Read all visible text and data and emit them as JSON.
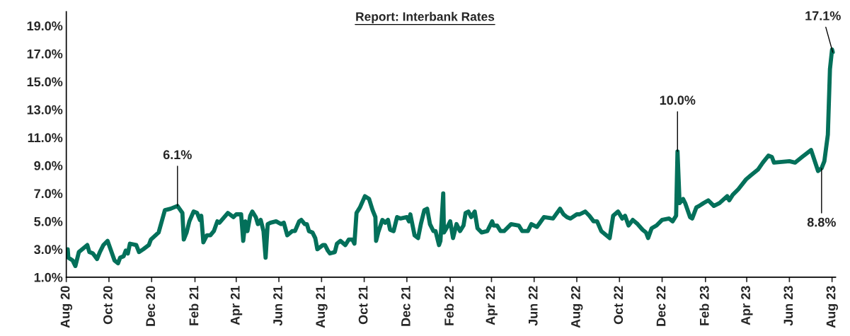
{
  "chart_data": {
    "type": "line",
    "title": "Report: Interbank Rates",
    "xlim": [
      "2020-08-01",
      "2023-08-06"
    ],
    "xticks": [
      {
        "value": "2020-08-01",
        "label": "Aug 20"
      },
      {
        "value": "2020-10-01",
        "label": "Oct 20"
      },
      {
        "value": "2020-12-01",
        "label": "Dec 20"
      },
      {
        "value": "2021-02-01",
        "label": "Feb 21"
      },
      {
        "value": "2021-04-01",
        "label": "Apr 21"
      },
      {
        "value": "2021-06-01",
        "label": "Jun 21"
      },
      {
        "value": "2021-08-01",
        "label": "Aug 21"
      },
      {
        "value": "2021-10-01",
        "label": "Oct 21"
      },
      {
        "value": "2021-12-01",
        "label": "Dec 21"
      },
      {
        "value": "2022-02-01",
        "label": "Feb 22"
      },
      {
        "value": "2022-04-01",
        "label": "Apr 22"
      },
      {
        "value": "2022-06-01",
        "label": "Jun 22"
      },
      {
        "value": "2022-08-01",
        "label": "Aug 22"
      },
      {
        "value": "2022-10-01",
        "label": "Oct 22"
      },
      {
        "value": "2022-12-01",
        "label": "Dec 22"
      },
      {
        "value": "2023-02-01",
        "label": "Feb 23"
      },
      {
        "value": "2023-04-01",
        "label": "Apr 23"
      },
      {
        "value": "2023-06-01",
        "label": "Jun 23"
      },
      {
        "value": "2023-08-01",
        "label": "Aug 23"
      }
    ],
    "ylim": [
      1,
      20
    ],
    "yticks": [
      {
        "value": 1,
        "label": "1.0%"
      },
      {
        "value": 3,
        "label": "3.0%"
      },
      {
        "value": 5,
        "label": "5.0%"
      },
      {
        "value": 7,
        "label": "7.0%"
      },
      {
        "value": 9,
        "label": "9.0%"
      },
      {
        "value": 11,
        "label": "11.0%"
      },
      {
        "value": 13,
        "label": "13.0%"
      },
      {
        "value": 15,
        "label": "15.0%"
      },
      {
        "value": 17,
        "label": "17.0%"
      },
      {
        "value": 19,
        "label": "19.0%"
      }
    ],
    "grid": false,
    "legend": false,
    "marker": "none",
    "line_style": "solid",
    "x": [
      "2020-08-03",
      "2020-08-04",
      "2020-08-10",
      "2020-08-14",
      "2020-08-19",
      "2020-08-31",
      "2020-09-03",
      "2020-09-08",
      "2020-09-14",
      "2020-09-18",
      "2020-09-23",
      "2020-09-29",
      "2020-10-09",
      "2020-10-14",
      "2020-10-17",
      "2020-10-22",
      "2020-10-25",
      "2020-10-28",
      "2020-10-31",
      "2020-11-09",
      "2020-11-13",
      "2020-11-19",
      "2020-11-27",
      "2020-11-30",
      "2020-12-11",
      "2020-12-20",
      "2020-12-28",
      "2021-01-07",
      "2021-01-14",
      "2021-01-16",
      "2021-01-20",
      "2021-01-24",
      "2021-01-30",
      "2021-02-04",
      "2021-02-08",
      "2021-02-10",
      "2021-02-13",
      "2021-02-18",
      "2021-02-23",
      "2021-02-28",
      "2021-03-05",
      "2021-03-08",
      "2021-03-20",
      "2021-03-28",
      "2021-04-01",
      "2021-04-08",
      "2021-04-11",
      "2021-04-14",
      "2021-04-17",
      "2021-04-21",
      "2021-04-24",
      "2021-04-29",
      "2021-05-02",
      "2021-05-06",
      "2021-05-10",
      "2021-05-13",
      "2021-05-16",
      "2021-05-20",
      "2021-05-28",
      "2021-06-04",
      "2021-06-08",
      "2021-06-13",
      "2021-06-20",
      "2021-06-24",
      "2021-06-30",
      "2021-07-03",
      "2021-07-08",
      "2021-07-11",
      "2021-07-14",
      "2021-07-19",
      "2021-07-23",
      "2021-07-26",
      "2021-08-03",
      "2021-08-06",
      "2021-08-10",
      "2021-08-13",
      "2021-08-20",
      "2021-08-23",
      "2021-08-28",
      "2021-09-04",
      "2021-09-09",
      "2021-09-14",
      "2021-09-17",
      "2021-09-20",
      "2021-09-25",
      "2021-10-02",
      "2021-10-08",
      "2021-10-13",
      "2021-10-17",
      "2021-10-18",
      "2021-10-21",
      "2021-10-27",
      "2021-10-31",
      "2021-11-04",
      "2021-11-07",
      "2021-11-12",
      "2021-11-17",
      "2021-11-22",
      "2021-12-01",
      "2021-12-04",
      "2021-12-06",
      "2021-12-12",
      "2021-12-17",
      "2021-12-21",
      "2021-12-26",
      "2021-12-30",
      "2022-01-03",
      "2022-01-08",
      "2022-01-11",
      "2022-01-16",
      "2022-01-18",
      "2022-01-22",
      "2022-01-23",
      "2022-01-29",
      "2022-02-01",
      "2022-02-05",
      "2022-02-10",
      "2022-02-15",
      "2022-02-20",
      "2022-02-23",
      "2022-02-27",
      "2022-03-03",
      "2022-03-08",
      "2022-03-12",
      "2022-03-18",
      "2022-03-26",
      "2022-04-02",
      "2022-04-04",
      "2022-04-09",
      "2022-04-14",
      "2022-04-19",
      "2022-04-29",
      "2022-05-10",
      "2022-05-15",
      "2022-05-23",
      "2022-05-28",
      "2022-06-05",
      "2022-06-15",
      "2022-06-28",
      "2022-07-08",
      "2022-07-13",
      "2022-07-18",
      "2022-07-23",
      "2022-08-01",
      "2022-08-05",
      "2022-08-13",
      "2022-08-19",
      "2022-08-25",
      "2022-08-30",
      "2022-09-05",
      "2022-09-17",
      "2022-09-22",
      "2022-09-29",
      "2022-10-05",
      "2022-10-09",
      "2022-10-14",
      "2022-10-20",
      "2022-10-27",
      "2022-11-03",
      "2022-11-08",
      "2022-11-11",
      "2022-11-16",
      "2022-11-23",
      "2022-12-01",
      "2022-12-11",
      "2022-12-16",
      "2022-12-21",
      "2022-12-23",
      "2022-12-26",
      "2022-12-31",
      "2023-01-03",
      "2023-01-10",
      "2023-01-13",
      "2023-01-19",
      "2023-01-23",
      "2023-01-29",
      "2023-02-05",
      "2023-02-13",
      "2023-02-21",
      "2023-03-04",
      "2023-03-07",
      "2023-03-12",
      "2023-03-20",
      "2023-03-31",
      "2023-04-07",
      "2023-04-17",
      "2023-04-24",
      "2023-05-02",
      "2023-05-07",
      "2023-05-10",
      "2023-06-01",
      "2023-06-09",
      "2023-06-19",
      "2023-07-02",
      "2023-07-12",
      "2023-07-17",
      "2023-07-21",
      "2023-07-26",
      "2023-07-29",
      "2023-08-01",
      "2023-08-02"
    ],
    "series": [
      {
        "color": "#03705a",
        "values": [
          3.0,
          2.4,
          2.2,
          1.8,
          2.8,
          3.3,
          2.8,
          2.7,
          2.3,
          2.8,
          3.3,
          3.6,
          2.2,
          2.0,
          2.4,
          2.5,
          2.9,
          2.7,
          3.4,
          3.3,
          2.8,
          3.0,
          3.3,
          3.7,
          4.2,
          5.8,
          5.9,
          6.1,
          5.6,
          3.7,
          4.2,
          5.0,
          5.7,
          5.6,
          5.1,
          5.4,
          3.5,
          4.0,
          4.0,
          4.3,
          5.0,
          4.9,
          5.6,
          5.3,
          5.5,
          5.5,
          3.6,
          5.0,
          4.3,
          5.4,
          5.7,
          5.3,
          4.8,
          5.1,
          4.3,
          2.4,
          4.8,
          4.9,
          5.0,
          4.8,
          4.9,
          4.0,
          4.3,
          4.3,
          5.0,
          5.1,
          4.8,
          4.8,
          4.3,
          4.2,
          3.8,
          3.0,
          3.3,
          3.3,
          2.9,
          2.7,
          2.8,
          3.4,
          3.6,
          3.3,
          3.7,
          3.7,
          3.4,
          5.6,
          6.0,
          6.8,
          6.6,
          5.8,
          5.3,
          3.6,
          4.2,
          5.1,
          4.9,
          5.1,
          4.4,
          4.3,
          5.3,
          5.2,
          5.3,
          5.0,
          5.5,
          4.0,
          3.8,
          4.8,
          5.8,
          5.9,
          4.8,
          4.3,
          4.3,
          3.3,
          3.6,
          7.0,
          4.2,
          4.7,
          5.0,
          3.8,
          4.8,
          4.3,
          4.7,
          5.6,
          5.7,
          5.3,
          5.7,
          4.5,
          4.2,
          4.3,
          5.0,
          4.7,
          4.7,
          4.3,
          4.3,
          4.8,
          4.7,
          4.3,
          4.3,
          4.8,
          4.6,
          5.3,
          5.2,
          5.9,
          5.5,
          5.3,
          5.2,
          5.5,
          5.5,
          5.7,
          5.4,
          5.0,
          5.0,
          4.3,
          3.8,
          5.4,
          5.7,
          5.2,
          5.4,
          4.7,
          5.1,
          4.8,
          4.4,
          4.2,
          3.8,
          4.5,
          4.7,
          5.1,
          5.2,
          5.0,
          5.4,
          10.0,
          6.3,
          6.6,
          6.3,
          5.3,
          5.2,
          6.0,
          6.1,
          6.3,
          6.5,
          6.1,
          6.3,
          6.8,
          6.5,
          6.9,
          7.3,
          8.0,
          8.3,
          8.7,
          9.2,
          9.7,
          9.6,
          9.2,
          9.3,
          9.2,
          9.6,
          10.1,
          8.6,
          8.8,
          9.3,
          11.2,
          15.9,
          17.3,
          17.1
        ]
      }
    ],
    "annotations": [
      {
        "text": "6.1%",
        "x": "2021-01-07",
        "y": 6.1
      },
      {
        "text": "10.0%",
        "x": "2022-12-23",
        "y": 10.0
      },
      {
        "text": "8.8%",
        "x": "2023-07-17",
        "y": 8.8
      },
      {
        "text": "17.1%",
        "x": "2023-08-02",
        "y": 17.1
      }
    ]
  }
}
